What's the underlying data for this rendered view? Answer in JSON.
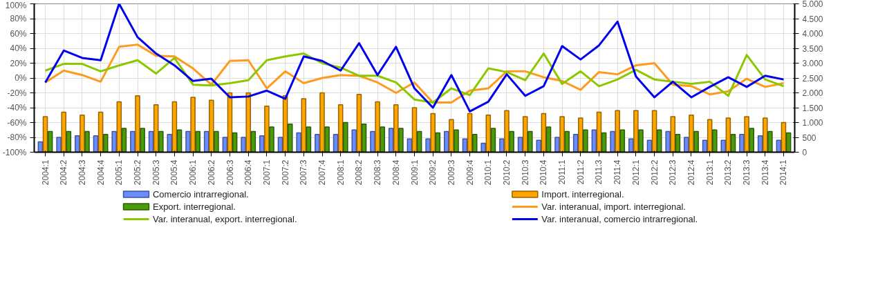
{
  "chart_data": {
    "type": "bar",
    "categories": [
      "2004:1",
      "2004:2",
      "2004:3",
      "2004:4",
      "2005:1",
      "2005:2",
      "2005:3",
      "2005:4",
      "2006:1",
      "2006:2",
      "2006:3",
      "2006:4",
      "2007:1",
      "2007:2",
      "2007:3",
      "2007:4",
      "2008:1",
      "2008:2",
      "2008:3",
      "2008:4",
      "2009:1",
      "2009:2",
      "2009:3",
      "2009:4",
      "2010:1",
      "2010:2",
      "2010:3",
      "2010:4",
      "2011:1",
      "2011:2",
      "2011:3",
      "2011:4",
      "2012:1",
      "2012:2",
      "2012:3",
      "2012:4",
      "2013:1",
      "2013:2",
      "2013:3",
      "2013:4",
      "2014:1"
    ],
    "series": [
      {
        "name": "Comercio intrarregional.",
        "axis": "y2",
        "color": "#6b8cff",
        "values": [
          350,
          500,
          550,
          550,
          700,
          700,
          700,
          600,
          700,
          700,
          500,
          500,
          550,
          500,
          650,
          600,
          600,
          750,
          700,
          800,
          450,
          450,
          700,
          450,
          300,
          450,
          500,
          400,
          500,
          600,
          750,
          700,
          450,
          400,
          700,
          500,
          400,
          400,
          600,
          550,
          400
        ]
      },
      {
        "name": "Import. interregional.",
        "axis": "y2",
        "color": "#ffa500",
        "values": [
          1200,
          1350,
          1250,
          1350,
          1700,
          1900,
          1600,
          1700,
          1850,
          1750,
          2000,
          2000,
          1550,
          1900,
          1800,
          2000,
          1600,
          1950,
          1700,
          1600,
          1500,
          1300,
          1100,
          1300,
          1250,
          1400,
          1200,
          1300,
          1200,
          1150,
          1350,
          1400,
          1400,
          1400,
          1200,
          1250,
          1100,
          1150,
          1200,
          1150,
          1000
        ]
      },
      {
        "name": "Export. interregional.",
        "axis": "y2",
        "color": "#4a9a0a",
        "values": [
          700,
          700,
          700,
          600,
          800,
          800,
          700,
          750,
          700,
          700,
          650,
          700,
          850,
          950,
          850,
          850,
          1000,
          950,
          850,
          800,
          700,
          650,
          750,
          600,
          800,
          700,
          700,
          850,
          700,
          750,
          650,
          750,
          750,
          750,
          600,
          700,
          750,
          600,
          800,
          700,
          650
        ]
      },
      {
        "name": "Var. interanual, import. interregional.",
        "type": "line",
        "axis": "y",
        "color": "#ff9a1f",
        "values": [
          -6,
          10,
          4,
          -5,
          42,
          45,
          30,
          29,
          13,
          -9,
          23,
          24,
          -14,
          9,
          -7,
          0,
          4,
          3,
          -6,
          -20,
          -6,
          -33,
          -33,
          -17,
          -14,
          9,
          9,
          1,
          -4,
          -16,
          8,
          5,
          17,
          20,
          -9,
          -11,
          -22,
          -18,
          -1,
          -12,
          -7
        ]
      },
      {
        "name": "Var. interanual, export. interregional.",
        "type": "line",
        "axis": "y",
        "color": "#8cc800",
        "values": [
          10,
          19,
          19,
          9,
          17,
          24,
          6,
          27,
          -9,
          -10,
          -7,
          -3,
          24,
          29,
          33,
          20,
          14,
          3,
          3,
          -6,
          -29,
          -33,
          -14,
          -23,
          13,
          8,
          -3,
          33,
          -8,
          9,
          -11,
          -2,
          11,
          -2,
          -5,
          -8,
          -5,
          -24,
          31,
          -2,
          -11
        ]
      },
      {
        "name": "Var. interanual, comercio intrarregional.",
        "type": "line",
        "axis": "y",
        "color": "#0000ee",
        "values": [
          -6,
          37,
          27,
          24,
          100,
          55,
          33,
          17,
          -4,
          -1,
          -26,
          -25,
          -17,
          -28,
          29,
          23,
          10,
          47,
          4,
          42,
          -14,
          -40,
          4,
          -45,
          -32,
          5,
          -24,
          -11,
          43,
          25,
          44,
          76,
          2,
          -26,
          -5,
          -26,
          -12,
          1,
          -12,
          3,
          -2
        ]
      }
    ],
    "ylim": [
      -100,
      100
    ],
    "yticks": [
      {
        "value": -100,
        "label": "-100%"
      },
      {
        "value": -80,
        "label": "-80%"
      },
      {
        "value": -60,
        "label": "-60%"
      },
      {
        "value": -40,
        "label": "-40%"
      },
      {
        "value": -20,
        "label": "-20%"
      },
      {
        "value": 0,
        "label": "0%"
      },
      {
        "value": 20,
        "label": "20%"
      },
      {
        "value": 40,
        "label": "40%"
      },
      {
        "value": 60,
        "label": "60%"
      },
      {
        "value": 80,
        "label": "80%"
      },
      {
        "value": 100,
        "label": "100%"
      }
    ],
    "y2lim": [
      0,
      5000
    ],
    "y2ticks": [
      0,
      500,
      {
        "value": 1000,
        "label": "1.000"
      },
      {
        "value": 1500,
        "label": "1.500"
      },
      {
        "value": 2000,
        "label": "2.000"
      },
      {
        "value": 2500,
        "label": "2.500"
      },
      {
        "value": 3000,
        "label": "3.000"
      },
      {
        "value": 3500,
        "label": "3.500"
      },
      {
        "value": 4000,
        "label": "4.000"
      },
      {
        "value": 4500,
        "label": "4.500"
      },
      {
        "value": 5000,
        "label": "5.000"
      }
    ],
    "grid": true,
    "legend": "bottom",
    "line_style": "solid"
  }
}
